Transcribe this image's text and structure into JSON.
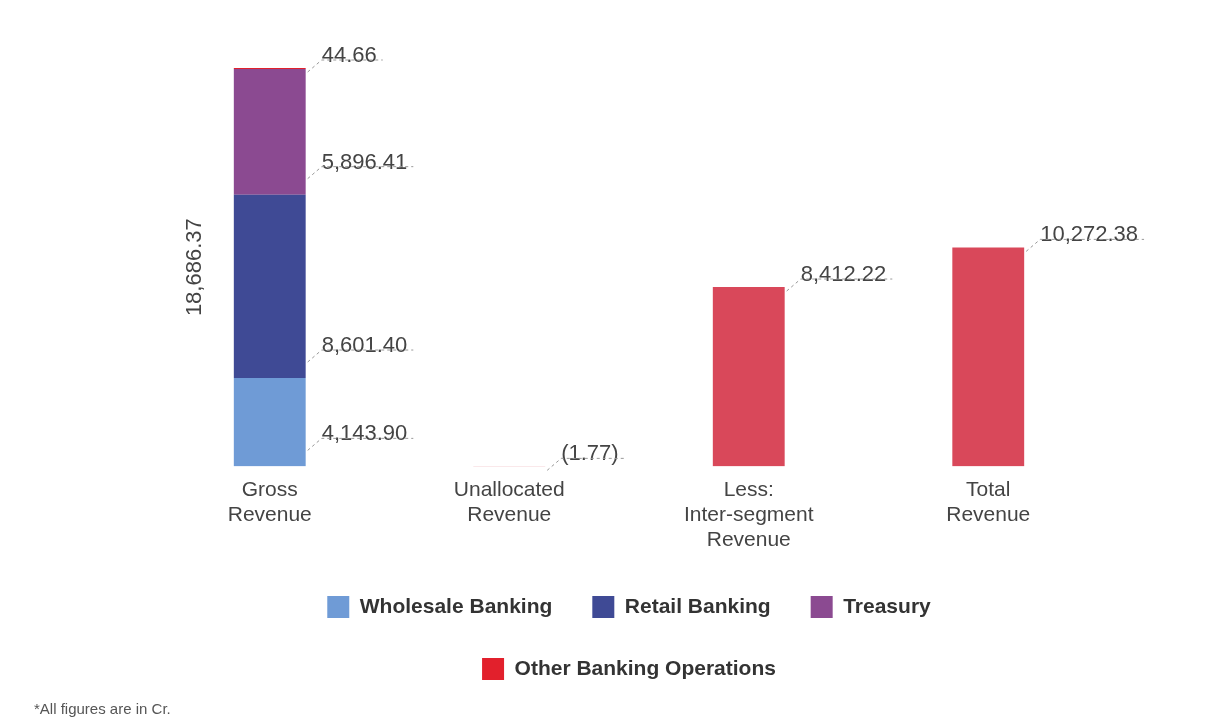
{
  "chart_data": {
    "type": "bar",
    "stacked": true,
    "categories": [
      "Gross\nRevenue",
      "Unallocated\nRevenue",
      "Less:\nInter-segment\nRevenue",
      "Total\nRevenue"
    ],
    "series": [
      {
        "name": "Wholesale Banking",
        "color": "#6f9bd6",
        "values": [
          4143.9,
          null,
          null,
          null
        ],
        "value_labels": [
          "4,143.90",
          null,
          null,
          null
        ]
      },
      {
        "name": "Retail Banking",
        "color": "#3f4a95",
        "values": [
          8601.4,
          null,
          null,
          null
        ],
        "value_labels": [
          "8,601.40",
          null,
          null,
          null
        ]
      },
      {
        "name": "Treasury",
        "color": "#8b4a91",
        "values": [
          5896.41,
          null,
          null,
          null
        ],
        "value_labels": [
          "5,896.41",
          null,
          null,
          null
        ]
      },
      {
        "name": "Other Banking Operations",
        "color": "#e2202c",
        "values": [
          44.66,
          null,
          null,
          null
        ],
        "value_labels": [
          "44.66",
          null,
          null,
          null
        ]
      },
      {
        "color": "#d9485a",
        "values": [
          null,
          -1.77,
          8412.22,
          10272.38
        ],
        "value_labels": [
          null,
          "(1.77)",
          "8,412.22",
          "10,272.38"
        ]
      }
    ],
    "totals": [
      "18,686.37",
      null,
      null,
      null
    ],
    "grid": false,
    "legend": "bottom",
    "annotations": [
      "*All figures are in Cr."
    ]
  }
}
